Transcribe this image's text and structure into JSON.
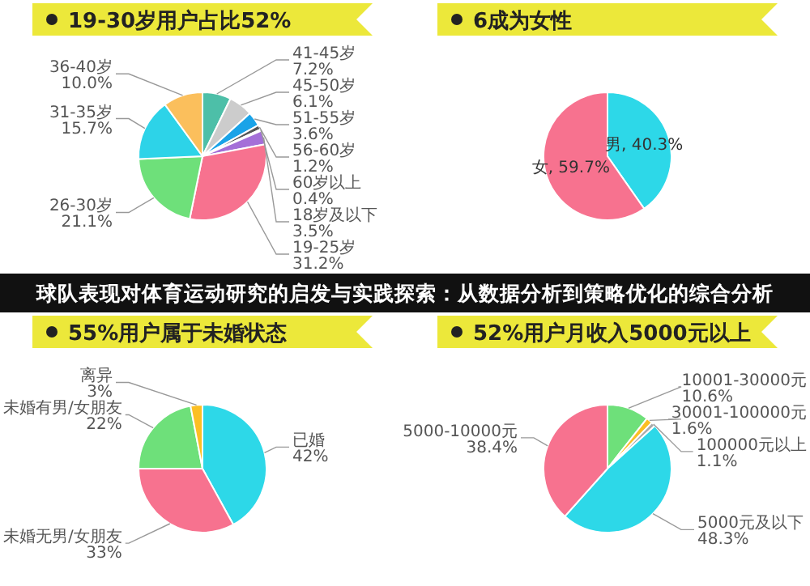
{
  "chart_data": [
    {
      "type": "pie",
      "title": "19-30岁用户占比52%",
      "categories": [
        "41-45岁",
        "45-50岁",
        "51-55岁",
        "56-60岁",
        "60岁以上",
        "18岁及以下",
        "19-25岁",
        "26-30岁",
        "31-35岁",
        "36-40岁"
      ],
      "values": [
        7.2,
        6.1,
        3.6,
        1.2,
        0.4,
        3.5,
        31.2,
        21.1,
        15.7,
        10.0
      ],
      "value_labels": [
        "7.2%",
        "6.1%",
        "3.6%",
        "1.2%",
        "0.4%",
        "3.5%",
        "31.2%",
        "21.1%",
        "15.7%",
        "10.0%"
      ],
      "colors": [
        "#4dbfa8",
        "#cccccc",
        "#1aa3e8",
        "#555555",
        "#aaaaaa",
        "#a46fd8",
        "#f7728f",
        "#6ee07a",
        "#2dd3e8",
        "#fbbf5c"
      ]
    },
    {
      "type": "pie",
      "title": "6成为女性",
      "categories": [
        "男",
        "女"
      ],
      "values": [
        40.3,
        59.7
      ],
      "value_labels": [
        "40.3%",
        "59.7%"
      ],
      "colors": [
        "#2dd8e8",
        "#f7728f"
      ]
    },
    {
      "type": "other",
      "title": "球队表现对体育运动研究的启发与实践探索：从数据分析到策略优化的综合分析"
    },
    {
      "type": "pie",
      "title": "55%用户属于未婚状态",
      "categories": [
        "已婚",
        "未婚无男/女朋友",
        "未婚有男/女朋友",
        "离异"
      ],
      "values": [
        42,
        33,
        22,
        3
      ],
      "value_labels": [
        "42%",
        "33%",
        "22%",
        "3%"
      ],
      "colors": [
        "#2dd8e8",
        "#f7728f",
        "#6ee07a",
        "#fbbf24"
      ]
    },
    {
      "type": "pie",
      "title": "52%用户月收入5000元以上",
      "categories": [
        "10001-30000元",
        "30001-100000元",
        "100000元以上",
        "5000元及以下",
        "5000-10000元"
      ],
      "values": [
        10.6,
        1.6,
        1.1,
        48.3,
        38.4
      ],
      "value_labels": [
        "10.6%",
        "1.6%",
        "1.1%",
        "48.3%",
        "38.4%"
      ],
      "colors": [
        "#6ee07a",
        "#fbbf24",
        "#aaaaaa",
        "#2dd8e8",
        "#f7728f"
      ]
    }
  ]
}
